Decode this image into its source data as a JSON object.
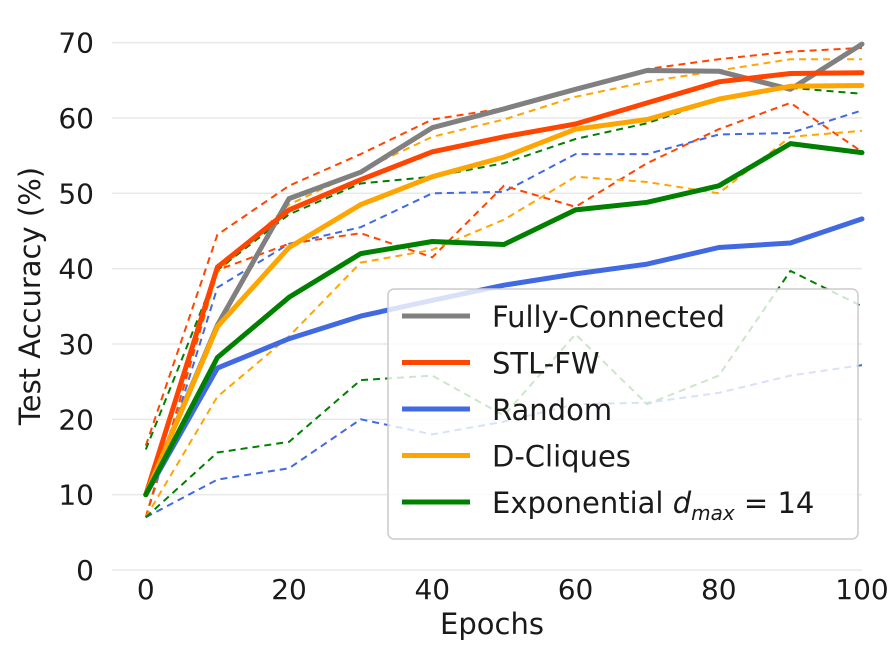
{
  "chart_data": {
    "type": "line",
    "xlabel": "Epochs",
    "ylabel": "Test Accuracy (%)",
    "xlim": [
      -5,
      100
    ],
    "ylim": [
      0,
      73
    ],
    "xticks": [
      0,
      20,
      40,
      60,
      80,
      100
    ],
    "yticks": [
      0,
      10,
      20,
      30,
      40,
      50,
      60,
      70
    ],
    "grid": "horizontal",
    "legend_position": "lower-right",
    "x": [
      0,
      10,
      20,
      30,
      40,
      50,
      60,
      70,
      80,
      90,
      100
    ],
    "series": [
      {
        "name": "Fully-Connected",
        "color": "#808080",
        "values": [
          10,
          32.5,
          49.3,
          52.8,
          58.7,
          61.2,
          63.8,
          66.3,
          66.2,
          63.8,
          69.8
        ],
        "upper": null,
        "lower": null
      },
      {
        "name": "STL-FW",
        "color": "#ff4500",
        "values": [
          10,
          40.2,
          47.8,
          51.8,
          55.5,
          57.5,
          59.2,
          62,
          64.8,
          65.9,
          66
        ],
        "upper": [
          16.5,
          44.5,
          51,
          55.2,
          59.8,
          61.3,
          63.8,
          66.5,
          67.8,
          68.8,
          69.3
        ],
        "lower": [
          7,
          39.8,
          43.3,
          44.7,
          41.5,
          51,
          48.2,
          54,
          58.5,
          62,
          55.5
        ]
      },
      {
        "name": "Random",
        "color": "#4169e1",
        "values": [
          10,
          26.8,
          30.7,
          33.7,
          35.8,
          37.8,
          39.3,
          40.6,
          42.8,
          43.4,
          46.6
        ],
        "upper": [
          7,
          37.5,
          43.3,
          45.5,
          50,
          50.2,
          55.2,
          55.2,
          57.8,
          58,
          61
        ],
        "lower": [
          7,
          12,
          13.5,
          20,
          18,
          19.7,
          22,
          22.2,
          23.5,
          25.8,
          27.2
        ]
      },
      {
        "name": "D-Cliques",
        "color": "#ffa500",
        "values": [
          10,
          32.3,
          42.8,
          48.5,
          52.2,
          54.8,
          58.5,
          59.8,
          62.5,
          64.2,
          64.3
        ],
        "upper": [
          7,
          39.5,
          48.5,
          53,
          57.5,
          59.8,
          62.8,
          64.8,
          66.3,
          67.8,
          67.8
        ],
        "lower": [
          7,
          23,
          31,
          40.8,
          42.5,
          46.5,
          52.2,
          51.5,
          50,
          57.5,
          58.3
        ]
      },
      {
        "name": "Exponential",
        "name_sub": "max",
        "name_suffix": " = 14",
        "color": "#008000",
        "values": [
          10,
          28.2,
          36.2,
          42,
          43.6,
          43.2,
          47.8,
          48.8,
          51,
          56.6,
          55.4
        ],
        "upper": [
          16,
          39.8,
          47.2,
          51.3,
          52.2,
          54,
          57.2,
          59.3,
          62.5,
          64,
          63.2
        ],
        "lower": [
          7,
          15.6,
          17,
          25.2,
          25.8,
          20.5,
          31.3,
          22,
          25.8,
          39.7,
          35
        ]
      }
    ]
  }
}
